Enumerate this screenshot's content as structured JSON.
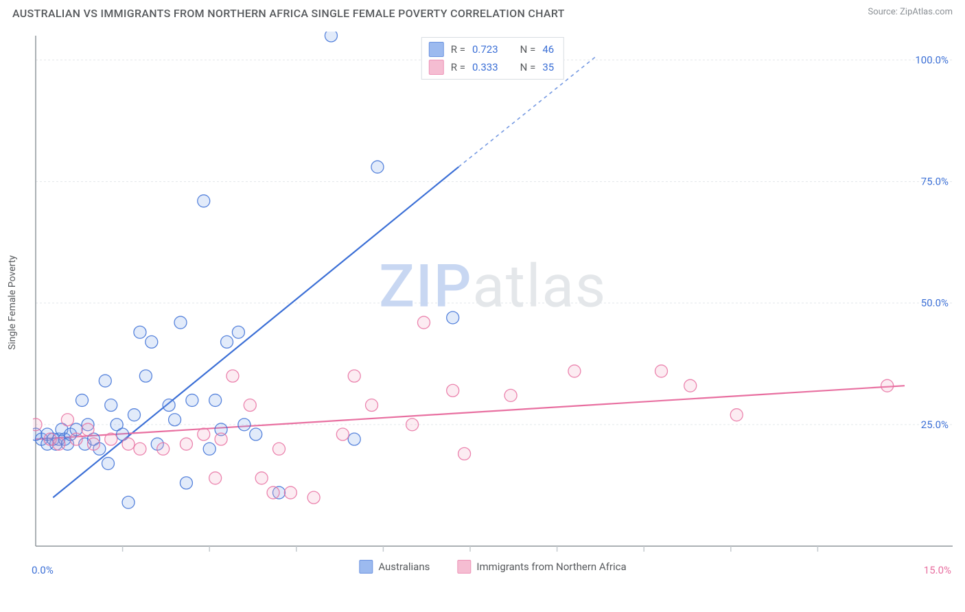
{
  "title": "AUSTRALIAN VS IMMIGRANTS FROM NORTHERN AFRICA SINGLE FEMALE POVERTY CORRELATION CHART",
  "source": "Source: ZipAtlas.com",
  "watermark": {
    "left": "ZIP",
    "right": "atlas"
  },
  "y_axis_label": "Single Female Poverty",
  "chart": {
    "type": "scatter",
    "background_color": "#ffffff",
    "grid_color": "#e2e6ea",
    "axis_color": "#8f969c",
    "tick_color": "#c4cace",
    "xlim": [
      0,
      15
    ],
    "ylim": [
      0,
      105
    ],
    "x_left_label": "0.0%",
    "x_right_label": "15.0%",
    "x_label_color": "#3b6fd6",
    "x_right_label_color": "#e86fa0",
    "x_ticks": [
      1.5,
      3.0,
      4.5,
      6.0,
      7.5,
      9.0,
      10.5,
      12.0,
      13.5
    ],
    "y_ticks": [
      {
        "value": 25,
        "label": "25.0%"
      },
      {
        "value": 50,
        "label": "50.0%"
      },
      {
        "value": 75,
        "label": "75.0%"
      },
      {
        "value": 100,
        "label": "100.0%"
      }
    ],
    "y_tick_label_color": "#3b6fd6",
    "marker_radius": 9,
    "marker_stroke_width": 1.3,
    "marker_fill_opacity": 0.22,
    "series": [
      {
        "name": "Australians",
        "color": "#3b6fd6",
        "fill": "#7ba3ea",
        "label": "Australians",
        "r": "0.723",
        "n": "46",
        "trend": {
          "x1": 0.3,
          "y1": 10,
          "x2": 7.3,
          "y2": 78,
          "dash_from_x": 7.3,
          "dash_to_x": 9.7,
          "dash_to_y": 101
        },
        "points": [
          [
            0.0,
            23
          ],
          [
            0.1,
            22
          ],
          [
            0.2,
            21
          ],
          [
            0.2,
            23
          ],
          [
            0.3,
            22
          ],
          [
            0.35,
            21
          ],
          [
            0.4,
            22
          ],
          [
            0.45,
            24
          ],
          [
            0.5,
            22
          ],
          [
            0.55,
            21
          ],
          [
            0.6,
            23
          ],
          [
            0.7,
            24
          ],
          [
            0.8,
            30
          ],
          [
            0.85,
            21
          ],
          [
            0.9,
            25
          ],
          [
            1.0,
            22
          ],
          [
            1.1,
            20
          ],
          [
            1.2,
            34
          ],
          [
            1.25,
            17
          ],
          [
            1.3,
            29
          ],
          [
            1.4,
            25
          ],
          [
            1.5,
            23
          ],
          [
            1.6,
            9
          ],
          [
            1.7,
            27
          ],
          [
            1.8,
            44
          ],
          [
            1.9,
            35
          ],
          [
            2.0,
            42
          ],
          [
            2.1,
            21
          ],
          [
            2.3,
            29
          ],
          [
            2.4,
            26
          ],
          [
            2.5,
            46
          ],
          [
            2.6,
            13
          ],
          [
            2.7,
            30
          ],
          [
            2.9,
            71
          ],
          [
            3.0,
            20
          ],
          [
            3.1,
            30
          ],
          [
            3.2,
            24
          ],
          [
            3.3,
            42
          ],
          [
            3.5,
            44
          ],
          [
            3.6,
            25
          ],
          [
            3.8,
            23
          ],
          [
            4.2,
            11
          ],
          [
            5.1,
            105
          ],
          [
            5.5,
            22
          ],
          [
            5.9,
            78
          ],
          [
            7.2,
            47
          ]
        ]
      },
      {
        "name": "Immigrants from Northern Africa",
        "color": "#e86fa0",
        "fill": "#f2a8c4",
        "label": "Immigrants from Northern Africa",
        "r": "0.333",
        "n": "35",
        "trend": {
          "x1": 0,
          "y1": 22,
          "x2": 15,
          "y2": 33
        },
        "points": [
          [
            0.0,
            25
          ],
          [
            0.25,
            22
          ],
          [
            0.4,
            21
          ],
          [
            0.55,
            26
          ],
          [
            0.7,
            22
          ],
          [
            0.9,
            24
          ],
          [
            1.0,
            21
          ],
          [
            1.3,
            22
          ],
          [
            1.6,
            21
          ],
          [
            1.8,
            20
          ],
          [
            2.2,
            20
          ],
          [
            2.6,
            21
          ],
          [
            2.9,
            23
          ],
          [
            3.1,
            14
          ],
          [
            3.2,
            22
          ],
          [
            3.4,
            35
          ],
          [
            3.7,
            29
          ],
          [
            3.9,
            14
          ],
          [
            4.1,
            11
          ],
          [
            4.2,
            20
          ],
          [
            4.4,
            11
          ],
          [
            4.8,
            10
          ],
          [
            5.3,
            23
          ],
          [
            5.5,
            35
          ],
          [
            5.8,
            29
          ],
          [
            6.5,
            25
          ],
          [
            6.7,
            46
          ],
          [
            7.2,
            32
          ],
          [
            7.4,
            19
          ],
          [
            8.2,
            31
          ],
          [
            9.3,
            36
          ],
          [
            10.8,
            36
          ],
          [
            11.3,
            33
          ],
          [
            12.1,
            27
          ],
          [
            14.7,
            33
          ]
        ]
      }
    ]
  },
  "legend": {
    "r_prefix": "R =",
    "n_prefix": "N ="
  }
}
